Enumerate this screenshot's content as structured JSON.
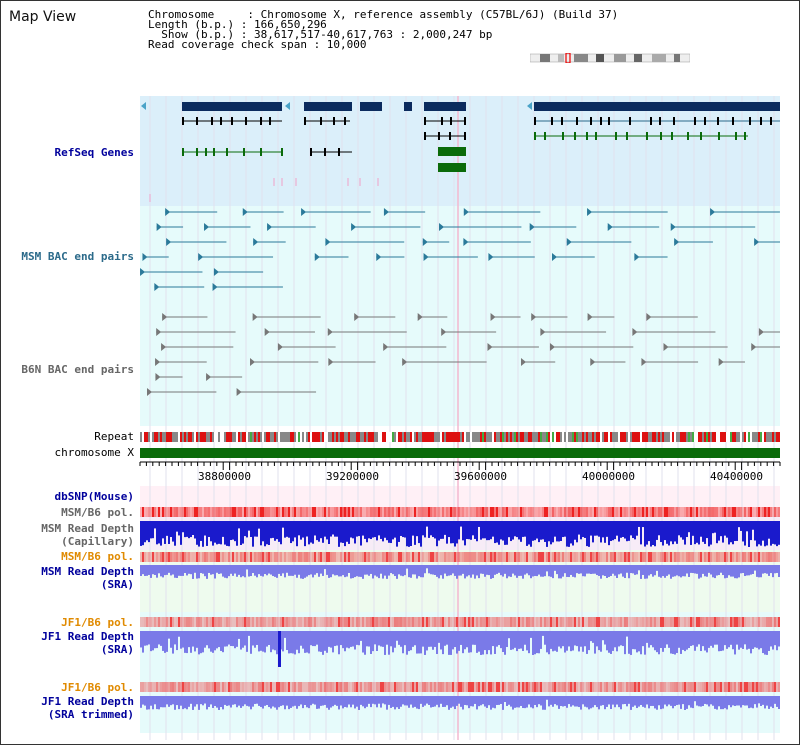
{
  "page": {
    "title": "Map View"
  },
  "info": {
    "line1": "Chromosome     : Chromosome X, reference assembly (C57BL/6J) (Build 37)",
    "line2": "Length (b.p.) : 166,650,296",
    "line3": "  Show (b.p.) : 38,617,517-40,617,763 : 2,000,247 bp",
    "line4": "Read coverage check span : 10,000"
  },
  "tracks": {
    "refseq": "RefSeq Genes",
    "msm_bac": "MSM BAC end pairs",
    "b6n_bac": "B6N BAC end pairs",
    "repeat": "Repeat",
    "chrom": "chromosome X",
    "dbsnp": "dbSNP(Mouse)",
    "msm_pol": "MSM/B6 pol.",
    "msm_depth_cap_1": "MSM Read Depth",
    "msm_depth_cap_2": "(Capillary)",
    "msm_pol2": "MSM/B6 pol.",
    "msm_sra_1": "MSM Read Depth",
    "msm_sra_2": "(SRA)",
    "jf1_pol": "JF1/B6 pol.",
    "jf1_sra_1": "JF1 Read Depth",
    "jf1_sra_2": "(SRA)",
    "jf1_pol2": "JF1/B6 pol.",
    "jf1_trim_1": "JF1 Read Depth",
    "jf1_trim_2": "(SRA trimmed)"
  },
  "axis": {
    "ticks": [
      "38800000",
      "39200000",
      "39600000",
      "40000000",
      "40400000"
    ]
  },
  "colors": {
    "refseq_bg": "#dbeffa",
    "bac_bg": "#e6fbfb",
    "gene_dark": "#0b2b5e",
    "gene_green": "#0a6b0a",
    "depth_blue": "#1a1acc",
    "depth_light": "#7a7ae8",
    "chrom_green": "#0a6b0a",
    "repeat_red": "#dd1111"
  }
}
